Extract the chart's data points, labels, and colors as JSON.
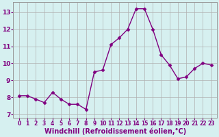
{
  "x": [
    0,
    1,
    2,
    3,
    4,
    5,
    6,
    7,
    8,
    9,
    10,
    11,
    12,
    13,
    14,
    15,
    16,
    17,
    18,
    19,
    20,
    21,
    22,
    23
  ],
  "y": [
    8.1,
    8.1,
    7.9,
    7.7,
    8.3,
    7.9,
    7.6,
    7.6,
    7.3,
    9.5,
    9.6,
    11.1,
    11.5,
    12.0,
    13.2,
    13.2,
    12.0,
    10.5,
    9.9,
    9.1,
    9.2,
    9.7,
    10.0,
    9.9
  ],
  "line_color": "#800080",
  "marker": "D",
  "markersize": 2.5,
  "linewidth": 1.0,
  "xlabel": "Windchill (Refroidissement éolien,°C)",
  "xlabel_fontsize": 7,
  "bg_color": "#d6f0f0",
  "grid_color": "#b0b0b0",
  "ylim": [
    6.8,
    13.6
  ],
  "yticks": [
    7,
    8,
    9,
    10,
    11,
    12,
    13
  ],
  "xticks": [
    0,
    1,
    2,
    3,
    4,
    5,
    6,
    7,
    8,
    9,
    10,
    11,
    12,
    13,
    14,
    15,
    16,
    17,
    18,
    19,
    20,
    21,
    22,
    23
  ],
  "tick_fontsize": 5.5,
  "tick_color": "#800080",
  "label_color": "#800080"
}
